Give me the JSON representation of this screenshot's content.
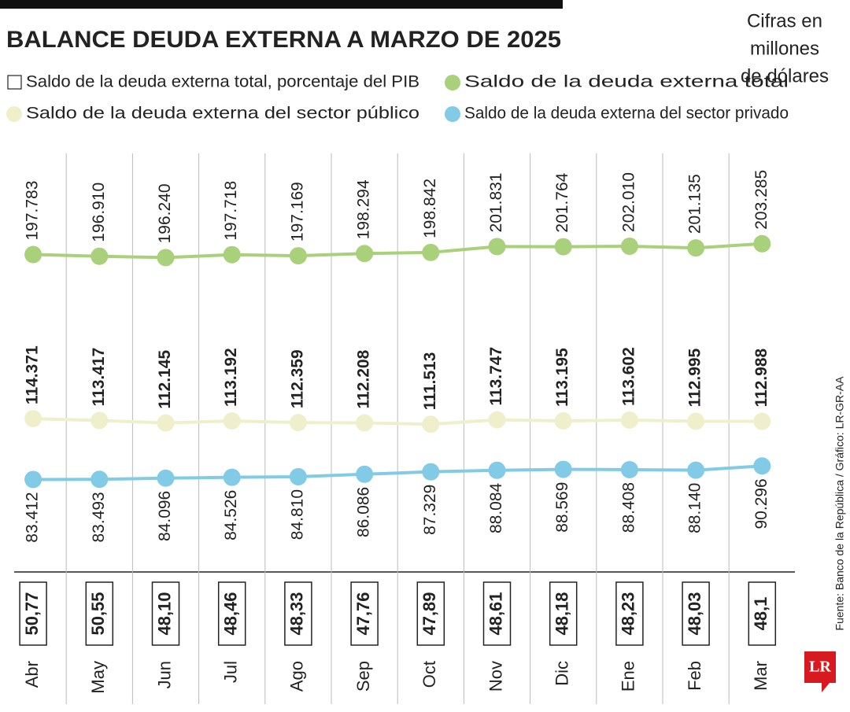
{
  "title": "BALANCE DEUDA EXTERNA A MARZO DE 2025",
  "note_lines": [
    "Cifras en",
    "millones",
    "de dólares"
  ],
  "source": "Fuente: Banco de la República / Gráfico: LR-GR-AA",
  "logo": "LR",
  "chart_data": {
    "type": "line",
    "categories": [
      "Abr",
      "May",
      "Jun",
      "Jul",
      "Ago",
      "Sep",
      "Oct",
      "Nov",
      "Dic",
      "Ene",
      "Feb",
      "Mar"
    ],
    "series": [
      {
        "name": "Saldo de la deuda externa total, porcentaje del PIB",
        "color": "#ffffff",
        "values": [
          50.77,
          50.55,
          48.1,
          48.46,
          48.33,
          47.76,
          47.89,
          48.61,
          48.18,
          48.23,
          48.03,
          48.1
        ],
        "value_labels": [
          "50,77",
          "50,55",
          "48,10",
          "48,46",
          "48,33",
          "47,76",
          "47,89",
          "48,61",
          "48,18",
          "48,23",
          "48,03",
          "48,1"
        ]
      },
      {
        "name": "Saldo de la deuda externa total",
        "color": "#a9d07a",
        "values": [
          197783,
          196910,
          196240,
          197718,
          197169,
          198294,
          198842,
          201831,
          201764,
          202010,
          201135,
          203285
        ],
        "value_labels": [
          "197.783",
          "196.910",
          "196.240",
          "197.718",
          "197.169",
          "198.294",
          "198.842",
          "201.831",
          "201.764",
          "202.010",
          "201.135",
          "203.285"
        ]
      },
      {
        "name": "Saldo de la deuda externa del sector público",
        "color": "#eff0cb",
        "values": [
          114371,
          113417,
          112145,
          113192,
          112359,
          112208,
          111513,
          113747,
          113195,
          113602,
          112995,
          112988
        ],
        "value_labels": [
          "114.371",
          "113.417",
          "112.145",
          "113.192",
          "112.359",
          "112.208",
          "111.513",
          "113.747",
          "113.195",
          "113.602",
          "112.995",
          "112.988"
        ]
      },
      {
        "name": "Saldo de la deuda externa del sector privado",
        "color": "#82cbe6",
        "values": [
          83412,
          83493,
          84096,
          84526,
          84810,
          86086,
          87329,
          88084,
          88569,
          88408,
          88140,
          90296
        ],
        "value_labels": [
          "83.412",
          "83.493",
          "84.096",
          "84.526",
          "84.810",
          "86.086",
          "87.329",
          "88.084",
          "88.569",
          "88.408",
          "88.140",
          "90.296"
        ]
      }
    ]
  }
}
